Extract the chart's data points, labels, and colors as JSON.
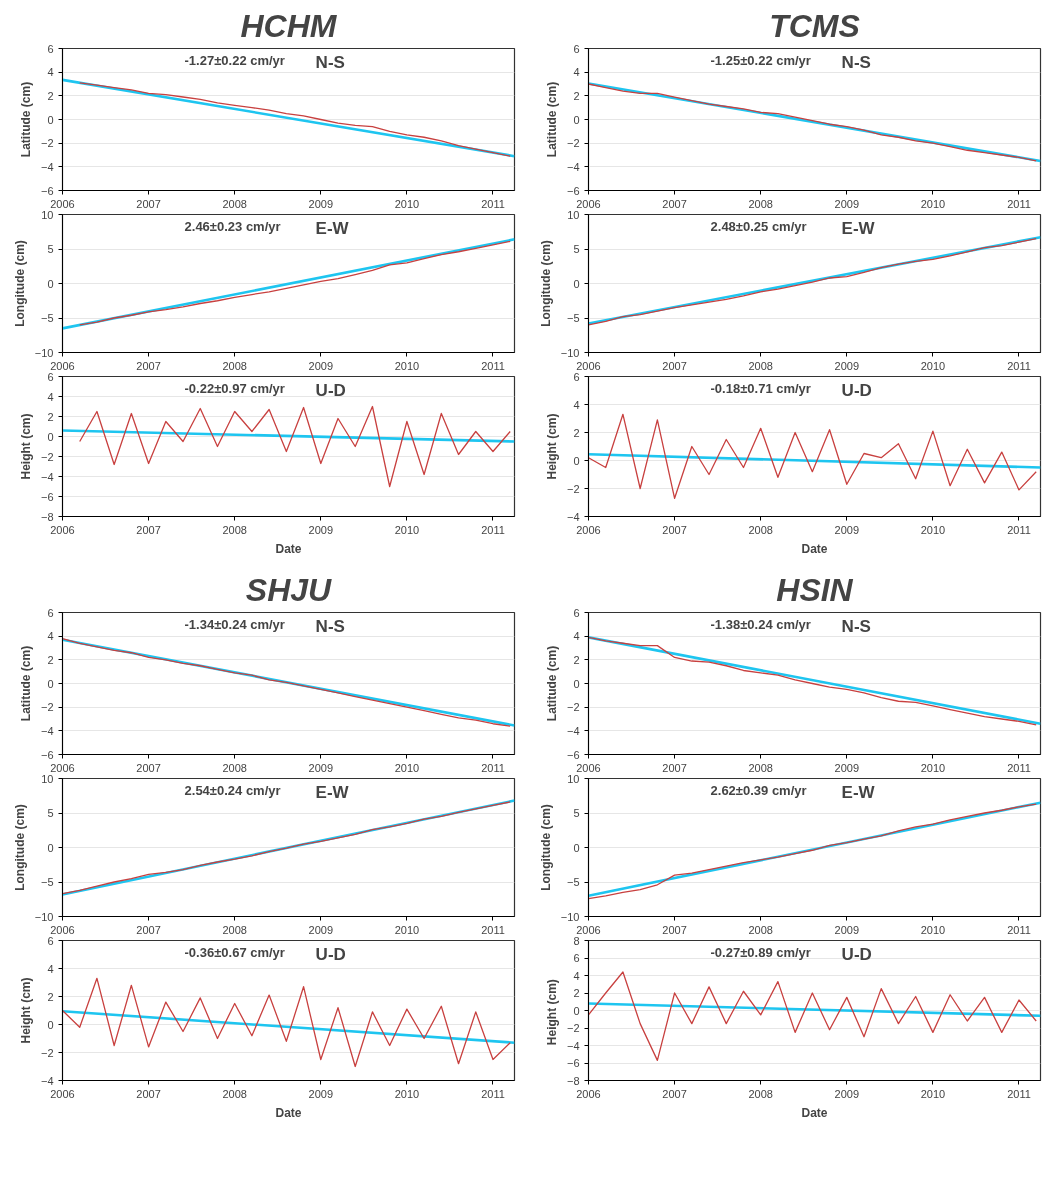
{
  "chart_data": [
    {
      "type": "line",
      "title": "HCHM",
      "ylabel": "Latitude (cm)",
      "annotations": [
        "-1.27±0.22 cm/yr",
        "N-S"
      ],
      "xlim": [
        2006,
        2011.25
      ],
      "xticks": [
        2006,
        2007,
        2008,
        2009,
        2010,
        2011
      ],
      "ylim": [
        -6,
        6
      ],
      "yticks": [
        -6,
        -4,
        -2,
        0,
        2,
        4,
        6
      ],
      "grid": "y",
      "series": [
        {
          "color": "#c8403f",
          "x": [
            2006.2,
            2006.4,
            2006.6,
            2006.8,
            2007.0,
            2007.2,
            2007.4,
            2007.6,
            2007.8,
            2008.0,
            2008.2,
            2008.4,
            2008.6,
            2008.8,
            2009.0,
            2009.2,
            2009.4,
            2009.6,
            2009.8,
            2010.0,
            2010.2,
            2010.4,
            2010.6,
            2010.8,
            2011.0,
            2011.2
          ],
          "values": [
            3.1,
            2.9,
            2.7,
            2.5,
            2.2,
            2.1,
            1.9,
            1.7,
            1.4,
            1.2,
            1.0,
            0.8,
            0.5,
            0.3,
            0.0,
            -0.3,
            -0.5,
            -0.6,
            -1.0,
            -1.3,
            -1.5,
            -1.8,
            -2.2,
            -2.5,
            -2.8,
            -3.1
          ]
        },
        {
          "color": "#1ec5f0",
          "x": [
            2006,
            2011.25
          ],
          "values": [
            3.35,
            -3.1
          ]
        }
      ]
    },
    {
      "type": "line",
      "ylabel": "Longitude (cm)",
      "annotations": [
        "2.46±0.23 cm/yr",
        "E-W"
      ],
      "xlim": [
        2006,
        2011.25
      ],
      "xticks": [
        2006,
        2007,
        2008,
        2009,
        2010,
        2011
      ],
      "ylim": [
        -10,
        10
      ],
      "yticks": [
        -10,
        -5,
        0,
        5,
        10
      ],
      "grid": "y",
      "series": [
        {
          "color": "#c8403f",
          "x": [
            2006.2,
            2006.4,
            2006.6,
            2006.8,
            2007.0,
            2007.2,
            2007.4,
            2007.6,
            2007.8,
            2008.0,
            2008.2,
            2008.4,
            2008.6,
            2008.8,
            2009.0,
            2009.2,
            2009.4,
            2009.6,
            2009.8,
            2010.0,
            2010.2,
            2010.4,
            2010.6,
            2010.8,
            2011.0,
            2011.2
          ],
          "values": [
            -6.0,
            -5.6,
            -5.0,
            -4.6,
            -4.1,
            -3.8,
            -3.4,
            -2.9,
            -2.5,
            -2.0,
            -1.6,
            -1.2,
            -0.7,
            -0.2,
            0.3,
            0.7,
            1.3,
            1.9,
            2.7,
            3.0,
            3.6,
            4.2,
            4.6,
            5.1,
            5.6,
            6.1
          ]
        },
        {
          "color": "#1ec5f0",
          "x": [
            2006,
            2011.25
          ],
          "values": [
            -6.5,
            6.4
          ]
        }
      ]
    },
    {
      "type": "line",
      "ylabel": "Height (cm)",
      "xlabel": "Date",
      "annotations": [
        "-0.22±0.97 cm/yr",
        "U-D"
      ],
      "xlim": [
        2006,
        2011.25
      ],
      "xticks": [
        2006,
        2007,
        2008,
        2009,
        2010,
        2011
      ],
      "ylim": [
        -8,
        6
      ],
      "yticks": [
        -8,
        -6,
        -4,
        -2,
        0,
        2,
        4,
        6
      ],
      "grid": "y",
      "series": [
        {
          "color": "#c8403f",
          "x": [
            2006.2,
            2006.4,
            2006.6,
            2006.8,
            2007.0,
            2007.2,
            2007.4,
            2007.6,
            2007.8,
            2008.0,
            2008.2,
            2008.4,
            2008.6,
            2008.8,
            2009.0,
            2009.2,
            2009.4,
            2009.6,
            2009.8,
            2010.0,
            2010.2,
            2010.4,
            2010.6,
            2010.8,
            2011.0,
            2011.2
          ],
          "values": [
            -0.5,
            2.5,
            -2.8,
            2.3,
            -2.7,
            1.5,
            -0.5,
            2.8,
            -1.0,
            2.5,
            0.5,
            2.7,
            -1.5,
            2.9,
            -2.7,
            1.8,
            -1.0,
            3.0,
            -5.0,
            1.5,
            -3.8,
            2.3,
            -1.8,
            0.5,
            -1.5,
            0.5
          ]
        },
        {
          "color": "#1ec5f0",
          "x": [
            2006,
            2011.25
          ],
          "values": [
            0.6,
            -0.5
          ]
        }
      ]
    },
    {
      "type": "line",
      "title": "TCMS",
      "ylabel": "Latitude (cm)",
      "annotations": [
        "-1.25±0.22 cm/yr",
        "N-S"
      ],
      "xlim": [
        2006,
        2011.25
      ],
      "xticks": [
        2006,
        2007,
        2008,
        2009,
        2010,
        2011
      ],
      "ylim": [
        -6,
        6
      ],
      "yticks": [
        -6,
        -4,
        -2,
        0,
        2,
        4,
        6
      ],
      "grid": "y",
      "series": [
        {
          "color": "#c8403f",
          "x": [
            2006.0,
            2006.2,
            2006.4,
            2006.6,
            2006.8,
            2007.0,
            2007.2,
            2007.4,
            2007.6,
            2007.8,
            2008.0,
            2008.2,
            2008.4,
            2008.6,
            2008.8,
            2009.0,
            2009.2,
            2009.4,
            2009.6,
            2009.8,
            2010.0,
            2010.2,
            2010.4,
            2010.6,
            2010.8,
            2011.0,
            2011.2
          ],
          "values": [
            3.0,
            2.7,
            2.4,
            2.2,
            2.2,
            1.9,
            1.6,
            1.3,
            1.1,
            0.9,
            0.6,
            0.5,
            0.2,
            -0.1,
            -0.4,
            -0.6,
            -0.9,
            -1.3,
            -1.5,
            -1.8,
            -2.0,
            -2.3,
            -2.6,
            -2.8,
            -3.0,
            -3.2,
            -3.5
          ]
        },
        {
          "color": "#1ec5f0",
          "x": [
            2006,
            2011.25
          ],
          "values": [
            3.05,
            -3.5
          ]
        }
      ]
    },
    {
      "type": "line",
      "ylabel": "Longitude (cm)",
      "annotations": [
        "2.48±0.25 cm/yr",
        "E-W"
      ],
      "xlim": [
        2006,
        2011.25
      ],
      "xticks": [
        2006,
        2007,
        2008,
        2009,
        2010,
        2011
      ],
      "ylim": [
        -10,
        10
      ],
      "yticks": [
        -10,
        -5,
        0,
        5,
        10
      ],
      "grid": "y",
      "series": [
        {
          "color": "#c8403f",
          "x": [
            2006.0,
            2006.2,
            2006.4,
            2006.6,
            2006.8,
            2007.0,
            2007.2,
            2007.4,
            2007.6,
            2007.8,
            2008.0,
            2008.2,
            2008.4,
            2008.6,
            2008.8,
            2009.0,
            2009.2,
            2009.4,
            2009.6,
            2009.8,
            2010.0,
            2010.2,
            2010.4,
            2010.6,
            2010.8,
            2011.0,
            2011.2
          ],
          "values": [
            -6.0,
            -5.5,
            -4.8,
            -4.5,
            -4.0,
            -3.5,
            -3.1,
            -2.7,
            -2.3,
            -1.8,
            -1.2,
            -0.8,
            -0.3,
            0.2,
            0.8,
            1.0,
            1.6,
            2.3,
            2.8,
            3.2,
            3.5,
            4.0,
            4.6,
            5.2,
            5.5,
            6.0,
            6.5
          ]
        },
        {
          "color": "#1ec5f0",
          "x": [
            2006,
            2011.25
          ],
          "values": [
            -5.8,
            6.7
          ]
        }
      ]
    },
    {
      "type": "line",
      "ylabel": "Height (cm)",
      "xlabel": "Date",
      "annotations": [
        "-0.18±0.71 cm/yr",
        "U-D"
      ],
      "xlim": [
        2006,
        2011.25
      ],
      "xticks": [
        2006,
        2007,
        2008,
        2009,
        2010,
        2011
      ],
      "ylim": [
        -4,
        6
      ],
      "yticks": [
        -4,
        -2,
        0,
        2,
        4,
        6
      ],
      "grid": "y",
      "series": [
        {
          "color": "#c8403f",
          "x": [
            2006.0,
            2006.2,
            2006.4,
            2006.6,
            2006.8,
            2007.0,
            2007.2,
            2007.4,
            2007.6,
            2007.8,
            2008.0,
            2008.2,
            2008.4,
            2008.6,
            2008.8,
            2009.0,
            2009.2,
            2009.4,
            2009.6,
            2009.8,
            2010.0,
            2010.2,
            2010.4,
            2010.6,
            2010.8,
            2011.0,
            2011.2
          ],
          "values": [
            0.2,
            -0.5,
            3.3,
            -2.0,
            2.9,
            -2.7,
            1.0,
            -1.0,
            1.5,
            -0.5,
            2.3,
            -1.2,
            2.0,
            -0.8,
            2.2,
            -1.7,
            0.5,
            0.2,
            1.2,
            -1.3,
            2.1,
            -1.8,
            0.8,
            -1.6,
            0.6,
            -2.1,
            -0.8
          ]
        },
        {
          "color": "#1ec5f0",
          "x": [
            2006,
            2011.25
          ],
          "values": [
            0.45,
            -0.5
          ]
        }
      ]
    },
    {
      "type": "line",
      "title": "SHJU",
      "ylabel": "Latitude (cm)",
      "annotations": [
        "-1.34±0.24 cm/yr",
        "N-S"
      ],
      "xlim": [
        2006,
        2011.25
      ],
      "xticks": [
        2006,
        2007,
        2008,
        2009,
        2010,
        2011
      ],
      "ylim": [
        -6,
        6
      ],
      "yticks": [
        -6,
        -4,
        -2,
        0,
        2,
        4,
        6
      ],
      "grid": "y",
      "series": [
        {
          "color": "#c8403f",
          "x": [
            2006.0,
            2006.2,
            2006.4,
            2006.6,
            2006.8,
            2007.0,
            2007.2,
            2007.4,
            2007.6,
            2007.8,
            2008.0,
            2008.2,
            2008.4,
            2008.6,
            2008.8,
            2009.0,
            2009.2,
            2009.4,
            2009.6,
            2009.8,
            2010.0,
            2010.2,
            2010.4,
            2010.6,
            2010.8,
            2011.0,
            2011.2
          ],
          "values": [
            3.8,
            3.4,
            3.1,
            2.8,
            2.6,
            2.2,
            2.0,
            1.7,
            1.5,
            1.2,
            0.9,
            0.7,
            0.3,
            0.1,
            -0.2,
            -0.5,
            -0.8,
            -1.1,
            -1.4,
            -1.7,
            -2.0,
            -2.3,
            -2.6,
            -2.9,
            -3.1,
            -3.4,
            -3.6
          ]
        },
        {
          "color": "#1ec5f0",
          "x": [
            2006,
            2011.25
          ],
          "values": [
            3.7,
            -3.55
          ]
        }
      ]
    },
    {
      "type": "line",
      "ylabel": "Longitude (cm)",
      "annotations": [
        "2.54±0.24 cm/yr",
        "E-W"
      ],
      "xlim": [
        2006,
        2011.25
      ],
      "xticks": [
        2006,
        2007,
        2008,
        2009,
        2010,
        2011
      ],
      "ylim": [
        -10,
        10
      ],
      "yticks": [
        -10,
        -5,
        0,
        5,
        10
      ],
      "grid": "y",
      "series": [
        {
          "color": "#c8403f",
          "x": [
            2006.0,
            2006.2,
            2006.4,
            2006.6,
            2006.8,
            2007.0,
            2007.2,
            2007.4,
            2007.6,
            2007.8,
            2008.0,
            2008.2,
            2008.4,
            2008.6,
            2008.8,
            2009.0,
            2009.2,
            2009.4,
            2009.6,
            2009.8,
            2010.0,
            2010.2,
            2010.4,
            2010.6,
            2010.8,
            2011.0,
            2011.2
          ],
          "values": [
            -6.7,
            -6.2,
            -5.6,
            -5.0,
            -4.5,
            -3.9,
            -3.6,
            -3.2,
            -2.6,
            -2.1,
            -1.7,
            -1.2,
            -0.6,
            -0.1,
            0.5,
            0.9,
            1.4,
            1.9,
            2.6,
            3.0,
            3.5,
            4.1,
            4.5,
            5.1,
            5.6,
            6.1,
            6.6
          ]
        },
        {
          "color": "#1ec5f0",
          "x": [
            2006,
            2011.25
          ],
          "values": [
            -6.8,
            6.8
          ]
        }
      ]
    },
    {
      "type": "line",
      "ylabel": "Height (cm)",
      "xlabel": "Date",
      "annotations": [
        "-0.36±0.67 cm/yr",
        "U-D"
      ],
      "xlim": [
        2006,
        2011.25
      ],
      "xticks": [
        2006,
        2007,
        2008,
        2009,
        2010,
        2011
      ],
      "ylim": [
        -4,
        6
      ],
      "yticks": [
        -4,
        -2,
        0,
        2,
        4,
        6
      ],
      "grid": "y",
      "series": [
        {
          "color": "#c8403f",
          "x": [
            2006.0,
            2006.2,
            2006.4,
            2006.6,
            2006.8,
            2007.0,
            2007.2,
            2007.4,
            2007.6,
            2007.8,
            2008.0,
            2008.2,
            2008.4,
            2008.6,
            2008.8,
            2009.0,
            2009.2,
            2009.4,
            2009.6,
            2009.8,
            2010.0,
            2010.2,
            2010.4,
            2010.6,
            2010.8,
            2011.0,
            2011.2
          ],
          "values": [
            1.0,
            -0.2,
            3.3,
            -1.5,
            2.8,
            -1.6,
            1.6,
            -0.5,
            1.9,
            -1.0,
            1.5,
            -0.8,
            2.1,
            -1.2,
            2.7,
            -2.5,
            1.2,
            -3.0,
            0.9,
            -1.5,
            1.1,
            -1.0,
            1.3,
            -2.8,
            0.9,
            -2.5,
            -1.3
          ]
        },
        {
          "color": "#1ec5f0",
          "x": [
            2006,
            2011.25
          ],
          "values": [
            0.95,
            -1.3
          ]
        }
      ]
    },
    {
      "type": "line",
      "title": "HSIN",
      "ylabel": "Latitude (cm)",
      "annotations": [
        "-1.38±0.24 cm/yr",
        "N-S"
      ],
      "xlim": [
        2006,
        2011.25
      ],
      "xticks": [
        2006,
        2007,
        2008,
        2009,
        2010,
        2011
      ],
      "ylim": [
        -6,
        6
      ],
      "yticks": [
        -6,
        -4,
        -2,
        0,
        2,
        4,
        6
      ],
      "grid": "y",
      "series": [
        {
          "color": "#c8403f",
          "x": [
            2006.0,
            2006.2,
            2006.4,
            2006.6,
            2006.8,
            2007.0,
            2007.2,
            2007.4,
            2007.6,
            2007.8,
            2008.0,
            2008.2,
            2008.4,
            2008.6,
            2008.8,
            2009.0,
            2009.2,
            2009.4,
            2009.6,
            2009.8,
            2010.0,
            2010.2,
            2010.4,
            2010.6,
            2010.8,
            2011.0,
            2011.2
          ],
          "values": [
            3.9,
            3.6,
            3.4,
            3.2,
            3.2,
            2.2,
            1.9,
            1.8,
            1.5,
            1.1,
            0.9,
            0.7,
            0.3,
            0.0,
            -0.3,
            -0.5,
            -0.8,
            -1.2,
            -1.5,
            -1.6,
            -1.9,
            -2.2,
            -2.5,
            -2.8,
            -3.0,
            -3.2,
            -3.5
          ]
        },
        {
          "color": "#1ec5f0",
          "x": [
            2006,
            2011.25
          ],
          "values": [
            3.9,
            -3.4
          ]
        }
      ]
    },
    {
      "type": "line",
      "ylabel": "Longitude (cm)",
      "annotations": [
        "2.62±0.39 cm/yr",
        "E-W"
      ],
      "xlim": [
        2006,
        2011.25
      ],
      "xticks": [
        2006,
        2007,
        2008,
        2009,
        2010,
        2011
      ],
      "ylim": [
        -10,
        10
      ],
      "yticks": [
        -10,
        -5,
        0,
        5,
        10
      ],
      "grid": "y",
      "series": [
        {
          "color": "#c8403f",
          "x": [
            2006.0,
            2006.2,
            2006.4,
            2006.6,
            2006.8,
            2007.0,
            2007.2,
            2007.4,
            2007.6,
            2007.8,
            2008.0,
            2008.2,
            2008.4,
            2008.6,
            2008.8,
            2009.0,
            2009.2,
            2009.4,
            2009.6,
            2009.8,
            2010.0,
            2010.2,
            2010.4,
            2010.6,
            2010.8,
            2011.0,
            2011.2
          ],
          "values": [
            -7.4,
            -7.0,
            -6.5,
            -6.1,
            -5.4,
            -4.0,
            -3.7,
            -3.2,
            -2.7,
            -2.2,
            -1.8,
            -1.4,
            -0.9,
            -0.4,
            0.3,
            0.7,
            1.2,
            1.7,
            2.4,
            3.0,
            3.4,
            4.0,
            4.5,
            5.0,
            5.4,
            5.9,
            6.3
          ]
        },
        {
          "color": "#1ec5f0",
          "x": [
            2006,
            2011.25
          ],
          "values": [
            -7.0,
            6.5
          ]
        }
      ]
    },
    {
      "type": "line",
      "ylabel": "Height  (cm)",
      "xlabel": "Date",
      "annotations": [
        "-0.27±0.89 cm/yr",
        "U-D"
      ],
      "xlim": [
        2006,
        2011.25
      ],
      "xticks": [
        2006,
        2007,
        2008,
        2009,
        2010,
        2011
      ],
      "ylim": [
        -8,
        8
      ],
      "yticks": [
        -8,
        -6,
        -4,
        -2,
        0,
        2,
        4,
        6,
        8
      ],
      "grid": "y",
      "series": [
        {
          "color": "#c8403f",
          "x": [
            2006.0,
            2006.2,
            2006.4,
            2006.6,
            2006.8,
            2007.0,
            2007.2,
            2007.4,
            2007.6,
            2007.8,
            2008.0,
            2008.2,
            2008.4,
            2008.6,
            2008.8,
            2009.0,
            2009.2,
            2009.4,
            2009.6,
            2009.8,
            2010.0,
            2010.2,
            2010.4,
            2010.6,
            2010.8,
            2011.0,
            2011.2
          ],
          "values": [
            -0.5,
            2.0,
            4.4,
            -1.5,
            -5.7,
            2.0,
            -1.5,
            2.7,
            -1.5,
            2.2,
            -0.5,
            3.3,
            -2.5,
            2.0,
            -2.2,
            1.5,
            -3.0,
            2.5,
            -1.5,
            1.6,
            -2.5,
            1.8,
            -1.2,
            1.5,
            -2.5,
            1.2,
            -1.2
          ]
        },
        {
          "color": "#1ec5f0",
          "x": [
            2006,
            2011.25
          ],
          "values": [
            0.8,
            -0.6
          ]
        }
      ]
    }
  ]
}
